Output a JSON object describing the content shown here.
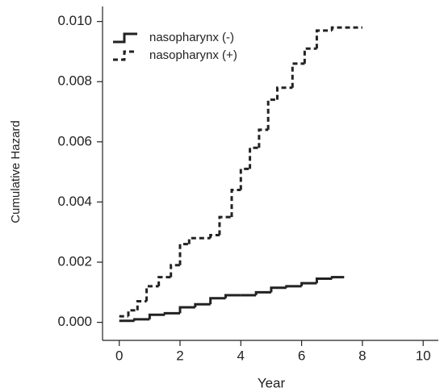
{
  "chart_data": {
    "type": "step",
    "xlabel": "Year",
    "ylabel": "Cumulative Hazard",
    "xlim": [
      -0.55,
      10.5
    ],
    "ylim": [
      -0.0006,
      0.0105
    ],
    "xticks": [
      0,
      2,
      4,
      6,
      8,
      10
    ],
    "yticks": [
      {
        "value": 0,
        "label": "0.000"
      },
      {
        "value": 0.002,
        "label": "0.002"
      },
      {
        "value": 0.004,
        "label": "0.004"
      },
      {
        "value": 0.006,
        "label": "0.006"
      },
      {
        "value": 0.008,
        "label": "0.008"
      },
      {
        "value": 0.01,
        "label": "0.010"
      }
    ],
    "grid": false,
    "legend": "upper left",
    "series": [
      {
        "name": "nasopharynx (-)",
        "color": "#222222",
        "line_style": "solid",
        "x": [
          0,
          0.5,
          1,
          1.5,
          2,
          2.5,
          3,
          3.5,
          4,
          4.5,
          5,
          5.5,
          6,
          6.5,
          7,
          7.4
        ],
        "values": [
          5e-05,
          0.0001,
          0.00025,
          0.0003,
          0.0005,
          0.0006,
          0.0008,
          0.0009,
          0.0009,
          0.001,
          0.00115,
          0.0012,
          0.0013,
          0.00145,
          0.0015,
          0.0015
        ]
      },
      {
        "name": "nasopharynx (+)",
        "color": "#222222",
        "line_style": "dashed",
        "x": [
          0,
          0.3,
          0.6,
          0.9,
          1.3,
          1.7,
          2,
          2.3,
          3,
          3.3,
          3.7,
          4,
          4.3,
          4.6,
          4.9,
          5.2,
          5.7,
          6.1,
          6.5,
          7,
          8
        ],
        "values": [
          0.0002,
          0.0004,
          0.0007,
          0.0012,
          0.0015,
          0.0019,
          0.0026,
          0.0028,
          0.0029,
          0.0035,
          0.0044,
          0.0051,
          0.0058,
          0.0064,
          0.0074,
          0.0078,
          0.0086,
          0.0091,
          0.0097,
          0.0098,
          0.0098
        ]
      }
    ]
  }
}
